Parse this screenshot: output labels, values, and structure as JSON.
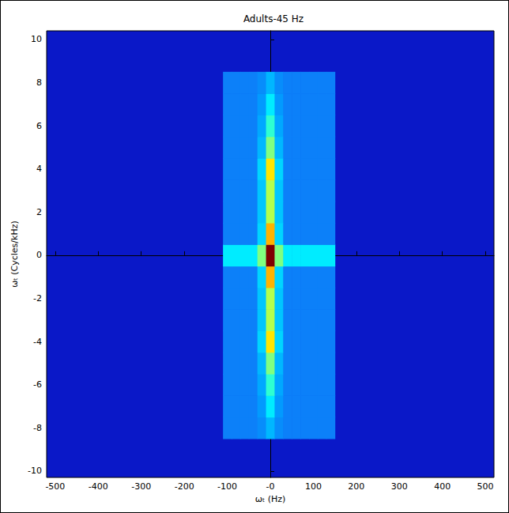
{
  "chart_data": {
    "type": "heatmap",
    "title": "Adults-45 Hz",
    "x_label": "ωₜ (Hz)",
    "y_label": "ωₜ (Cycles/kHz)",
    "xlim": [
      -520,
      520
    ],
    "ylim": [
      -10.3,
      10.4
    ],
    "xticks": [
      -500,
      -400,
      -300,
      -200,
      -100,
      {
        "value": 0,
        "label": "-0"
      },
      100,
      200,
      300,
      400,
      500
    ],
    "yticks": [
      -10,
      -8,
      -6,
      -4,
      -2,
      0,
      2,
      4,
      6,
      8,
      10
    ],
    "grid": false,
    "cells": {
      "x": [
        -100,
        -80,
        -60,
        -40,
        -20,
        0,
        20,
        40,
        60,
        80,
        100,
        120,
        140
      ],
      "y": [
        -8,
        -7,
        -6,
        -5,
        -4,
        -3,
        -2,
        -1,
        0,
        1,
        2,
        3,
        4,
        5,
        6,
        7,
        8
      ],
      "z_range": [
        0,
        1
      ],
      "values": [
        [
          0.2,
          0.2,
          0.2,
          0.2,
          0.22,
          0.28,
          0.22,
          0.2,
          0.2,
          0.2,
          0.2,
          0.2,
          0.2
        ],
        [
          0.2,
          0.2,
          0.2,
          0.2,
          0.24,
          0.35,
          0.24,
          0.2,
          0.2,
          0.2,
          0.2,
          0.2,
          0.2
        ],
        [
          0.2,
          0.2,
          0.2,
          0.2,
          0.26,
          0.42,
          0.26,
          0.2,
          0.2,
          0.2,
          0.2,
          0.2,
          0.2
        ],
        [
          0.2,
          0.2,
          0.2,
          0.2,
          0.28,
          0.5,
          0.28,
          0.2,
          0.2,
          0.2,
          0.2,
          0.2,
          0.2
        ],
        [
          0.2,
          0.2,
          0.2,
          0.2,
          0.32,
          0.65,
          0.32,
          0.2,
          0.2,
          0.2,
          0.2,
          0.2,
          0.2
        ],
        [
          0.2,
          0.2,
          0.2,
          0.2,
          0.3,
          0.55,
          0.3,
          0.2,
          0.2,
          0.2,
          0.2,
          0.2,
          0.2
        ],
        [
          0.2,
          0.2,
          0.2,
          0.2,
          0.3,
          0.55,
          0.3,
          0.2,
          0.2,
          0.2,
          0.2,
          0.2,
          0.2
        ],
        [
          0.2,
          0.2,
          0.2,
          0.2,
          0.32,
          0.7,
          0.32,
          0.2,
          0.2,
          0.2,
          0.2,
          0.2,
          0.2
        ],
        [
          0.35,
          0.35,
          0.35,
          0.35,
          0.5,
          1.0,
          0.5,
          0.35,
          0.35,
          0.35,
          0.35,
          0.35,
          0.35
        ],
        [
          0.2,
          0.2,
          0.2,
          0.2,
          0.32,
          0.7,
          0.32,
          0.2,
          0.2,
          0.2,
          0.2,
          0.2,
          0.2
        ],
        [
          0.2,
          0.2,
          0.2,
          0.2,
          0.3,
          0.55,
          0.3,
          0.2,
          0.2,
          0.2,
          0.2,
          0.2,
          0.2
        ],
        [
          0.2,
          0.2,
          0.2,
          0.2,
          0.3,
          0.55,
          0.3,
          0.2,
          0.2,
          0.2,
          0.2,
          0.2,
          0.2
        ],
        [
          0.2,
          0.2,
          0.2,
          0.2,
          0.32,
          0.65,
          0.32,
          0.2,
          0.2,
          0.2,
          0.2,
          0.2,
          0.2
        ],
        [
          0.2,
          0.2,
          0.2,
          0.2,
          0.28,
          0.5,
          0.28,
          0.2,
          0.2,
          0.2,
          0.2,
          0.2,
          0.2
        ],
        [
          0.2,
          0.2,
          0.2,
          0.2,
          0.26,
          0.42,
          0.26,
          0.2,
          0.2,
          0.2,
          0.2,
          0.2,
          0.2
        ],
        [
          0.2,
          0.2,
          0.2,
          0.2,
          0.24,
          0.35,
          0.24,
          0.2,
          0.2,
          0.2,
          0.2,
          0.2,
          0.2
        ],
        [
          0.2,
          0.2,
          0.2,
          0.2,
          0.22,
          0.28,
          0.22,
          0.2,
          0.2,
          0.2,
          0.2,
          0.2,
          0.2
        ]
      ]
    }
  }
}
